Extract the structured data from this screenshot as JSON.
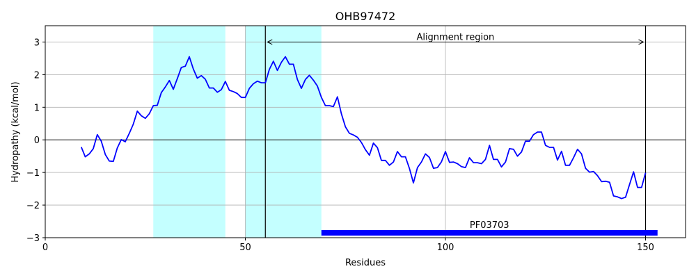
{
  "chart_data": {
    "type": "line",
    "title": "OHB97472",
    "xlabel": "Residues",
    "ylabel": "Hydropathy (kcal/mol)",
    "xlim": [
      0,
      160
    ],
    "ylim": [
      -3,
      3.5
    ],
    "xticks": [
      0,
      50,
      100,
      150
    ],
    "yticks": [
      -3,
      -2,
      -1,
      0,
      1,
      2,
      3
    ],
    "grid": true,
    "colors": {
      "line": "#0000ff",
      "highlight": "#c4ffff",
      "domain_bar": "#0000ff",
      "grid": "#b0b0b0"
    },
    "highlight_regions": [
      [
        27,
        45
      ],
      [
        50,
        69
      ]
    ],
    "vertical_lines": [
      55,
      150
    ],
    "alignment_region": {
      "label": "Alignment region",
      "start": 55,
      "end": 150,
      "y": 3.0
    },
    "domain": {
      "label": "PF03703",
      "start": 69,
      "end": 153,
      "y": -2.85
    },
    "series": [
      {
        "x": [
          9,
          10,
          11,
          12,
          13,
          14,
          15,
          16,
          17,
          18,
          19,
          20,
          21,
          22,
          23,
          24,
          25,
          26,
          27,
          28,
          29,
          30,
          31,
          32,
          33,
          34,
          35,
          36,
          37,
          38,
          39,
          40,
          41,
          42,
          43,
          44,
          45,
          46,
          47,
          48,
          49,
          50,
          51,
          52,
          53,
          54,
          55,
          56,
          57,
          58,
          59,
          60,
          61,
          62,
          63,
          64,
          65,
          66,
          67,
          68,
          69,
          70,
          71,
          72,
          73,
          74,
          75,
          76,
          77,
          78,
          79,
          80,
          81,
          82,
          83,
          84,
          85,
          86,
          87,
          88,
          89,
          90,
          91,
          92,
          93,
          94,
          95,
          96,
          97,
          98,
          99,
          100,
          101,
          102,
          103,
          104,
          105,
          106,
          107,
          108,
          109,
          110,
          111,
          112,
          113,
          114,
          115,
          116,
          117,
          118,
          119,
          120,
          121,
          122,
          123,
          124,
          125,
          126,
          127,
          128,
          129,
          130,
          131,
          132,
          133,
          134,
          135,
          136,
          137,
          138,
          139,
          140,
          141,
          142,
          143,
          144,
          145,
          146,
          147,
          148,
          149,
          150
        ],
        "y": [
          -0.22,
          -0.52,
          -0.43,
          -0.27,
          0.16,
          -0.04,
          -0.45,
          -0.65,
          -0.66,
          -0.25,
          0.01,
          -0.06,
          0.2,
          0.48,
          0.88,
          0.74,
          0.66,
          0.8,
          1.05,
          1.06,
          1.45,
          1.62,
          1.82,
          1.55,
          1.88,
          2.22,
          2.26,
          2.55,
          2.17,
          1.89,
          1.97,
          1.86,
          1.59,
          1.59,
          1.46,
          1.54,
          1.79,
          1.52,
          1.48,
          1.42,
          1.3,
          1.3,
          1.58,
          1.72,
          1.8,
          1.75,
          1.75,
          2.16,
          2.41,
          2.13,
          2.38,
          2.55,
          2.32,
          2.32,
          1.85,
          1.58,
          1.85,
          1.98,
          1.83,
          1.65,
          1.3,
          1.05,
          1.05,
          1.02,
          1.32,
          0.8,
          0.4,
          0.2,
          0.15,
          0.08,
          -0.08,
          -0.3,
          -0.47,
          -0.1,
          -0.24,
          -0.63,
          -0.63,
          -0.78,
          -0.68,
          -0.36,
          -0.52,
          -0.52,
          -0.88,
          -1.32,
          -0.85,
          -0.68,
          -0.43,
          -0.54,
          -0.87,
          -0.85,
          -0.67,
          -0.36,
          -0.69,
          -0.68,
          -0.73,
          -0.82,
          -0.85,
          -0.55,
          -0.7,
          -0.7,
          -0.73,
          -0.6,
          -0.17,
          -0.6,
          -0.6,
          -0.83,
          -0.68,
          -0.27,
          -0.29,
          -0.5,
          -0.37,
          -0.04,
          -0.04,
          0.16,
          0.24,
          0.24,
          -0.17,
          -0.23,
          -0.23,
          -0.62,
          -0.35,
          -0.78,
          -0.78,
          -0.55,
          -0.29,
          -0.43,
          -0.87,
          -0.99,
          -0.97,
          -1.1,
          -1.28,
          -1.27,
          -1.3,
          -1.72,
          -1.75,
          -1.8,
          -1.76,
          -1.37,
          -0.98,
          -1.46,
          -1.46,
          -1.01
        ]
      }
    ]
  }
}
